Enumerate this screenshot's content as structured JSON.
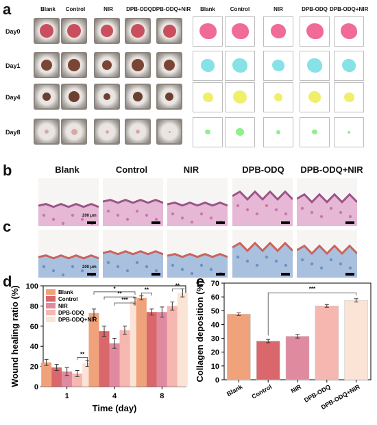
{
  "panels": {
    "a": "a",
    "b": "b",
    "c": "c",
    "d": "d",
    "e": "e"
  },
  "groups": [
    "Blank",
    "Control",
    "NIR",
    "DPB-ODQ",
    "DPB-ODQ+NIR"
  ],
  "days": [
    "Day0",
    "Day1",
    "Day4",
    "Day8"
  ],
  "scale_label": "200 μm",
  "colors": {
    "Blank": "#f0a27b",
    "Control": "#d9676b",
    "NIR": "#e08aa0",
    "DPB-ODQ": "#f5b7b0",
    "DPB-ODQ+NIR": "#fbe3d6",
    "day0_mask": "#f06a9a",
    "day1_mask": "#86e2e6",
    "day4_mask": "#f0ef6a",
    "day8_mask": "#8ef08a"
  },
  "chart_data": [
    {
      "type": "bar",
      "panel": "d",
      "categories": [
        "1",
        "4",
        "8"
      ],
      "xlabel": "Time (day)",
      "ylabel": "Wound healing ratio (%)",
      "ylim": [
        0,
        100
      ],
      "yticks": [
        0,
        20,
        40,
        60,
        80,
        100
      ],
      "legend": "top-left",
      "series": [
        {
          "name": "Blank",
          "values": [
            24,
            73,
            88
          ],
          "errors": [
            3,
            4,
            2
          ]
        },
        {
          "name": "Control",
          "values": [
            19,
            55,
            74
          ],
          "errors": [
            3,
            5,
            3
          ]
        },
        {
          "name": "NIR",
          "values": [
            15,
            43,
            74
          ],
          "errors": [
            4,
            5,
            5
          ]
        },
        {
          "name": "DPB-ODQ",
          "values": [
            13,
            56,
            80
          ],
          "errors": [
            3,
            4,
            4
          ]
        },
        {
          "name": "DPB-ODQ+NIR",
          "values": [
            23,
            85,
            93
          ],
          "errors": [
            3,
            3,
            4
          ]
        }
      ],
      "annotations": [
        "**",
        "*",
        "**",
        "***",
        "**",
        "**"
      ]
    },
    {
      "type": "bar",
      "panel": "e",
      "categories": [
        "Blank",
        "Control",
        "NIR",
        "DPB-ODQ",
        "DPB-ODQ+NIR"
      ],
      "ylabel": "Collagen deposition (%)",
      "ylim": [
        0,
        70
      ],
      "yticks": [
        0,
        10,
        20,
        30,
        40,
        50,
        60,
        70
      ],
      "values": [
        47.5,
        28,
        31.5,
        53.5,
        57.5
      ],
      "errors": [
        1,
        1.2,
        1.3,
        1,
        1.2
      ],
      "annotations": [
        "***"
      ]
    }
  ]
}
